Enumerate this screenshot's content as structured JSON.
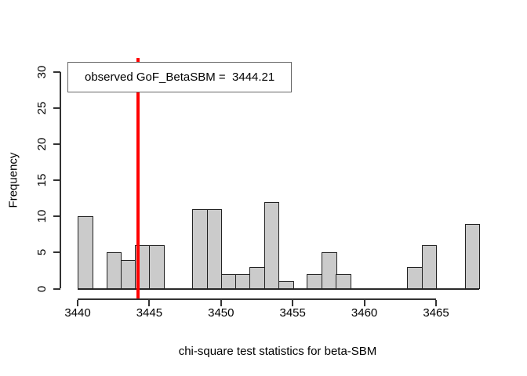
{
  "figure": {
    "background": "#ffffff"
  },
  "chart_data": {
    "type": "bar",
    "subtype": "histogram",
    "title": "",
    "xlabel": "chi-square test statistics for beta-SBM",
    "ylabel": "Frequency",
    "bin_start": 3440,
    "bin_width": 1,
    "counts": [
      10,
      0,
      5,
      4,
      6,
      6,
      0,
      0,
      11,
      11,
      2,
      2,
      3,
      12,
      1,
      0,
      2,
      5,
      2,
      0,
      0,
      0,
      0,
      3,
      6,
      0,
      0,
      9
    ],
    "x_ticks": [
      3440,
      3445,
      3450,
      3455,
      3460,
      3465
    ],
    "y_ticks": [
      0,
      5,
      10,
      15,
      20,
      25,
      30
    ],
    "xlim": [
      3440,
      3468
    ],
    "ylim": [
      0,
      30
    ],
    "grid": false,
    "legend_position": "top-left",
    "bar_fill": "#cbcbcb",
    "bar_border": "#222222",
    "observed_line": {
      "x": 3444.21,
      "color": "#ff0000"
    },
    "legend": {
      "text": "observed GoF_BetaSBM =  3444.21"
    }
  }
}
